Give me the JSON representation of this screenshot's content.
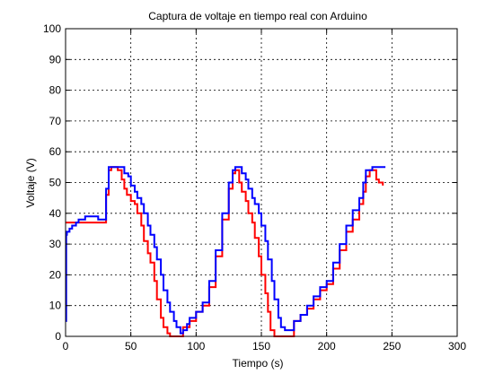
{
  "chart_data": {
    "type": "line",
    "title": "Captura de voltaje en tiempo real con Arduino",
    "xlabel": "Tiempo (s)",
    "ylabel": "Voltaje (V)",
    "xlim": [
      0,
      300
    ],
    "ylim": [
      0,
      100
    ],
    "xticks": [
      0,
      50,
      100,
      150,
      200,
      250,
      300
    ],
    "yticks": [
      0,
      10,
      20,
      30,
      40,
      50,
      60,
      70,
      80,
      90,
      100
    ],
    "grid": true,
    "legend": "none",
    "series": [
      {
        "color": "#ff0000",
        "x": [
          0,
          30,
          31,
          33,
          35,
          40,
          43,
          45,
          47,
          50,
          53,
          55,
          58,
          60,
          63,
          65,
          68,
          70,
          73,
          75,
          78,
          80,
          82,
          84,
          85,
          90,
          95,
          100,
          105,
          110,
          115,
          120,
          125,
          128,
          130,
          133,
          135,
          138,
          140,
          143,
          145,
          148,
          150,
          153,
          155,
          157,
          160,
          165,
          170,
          175,
          180,
          185,
          190,
          195,
          200,
          205,
          210,
          215,
          220,
          225,
          228,
          230,
          233,
          235,
          238,
          240,
          243
        ],
        "y": [
          37,
          37,
          46,
          54,
          55,
          54,
          51,
          48,
          46,
          44,
          43,
          40,
          36,
          31,
          27,
          24,
          18,
          12,
          6,
          3,
          1,
          0,
          0,
          0,
          0,
          3,
          5,
          8,
          10,
          16,
          26,
          38,
          48,
          53,
          54,
          50,
          47,
          44,
          40,
          37,
          32,
          26,
          20,
          14,
          8,
          2,
          0,
          0,
          0,
          5,
          7,
          9,
          12,
          15,
          17,
          22,
          28,
          34,
          38,
          43,
          47,
          52,
          54,
          54,
          51,
          50,
          49
        ]
      },
      {
        "color": "#0000ff",
        "x": [
          0,
          0.5,
          1,
          3,
          5,
          8,
          10,
          12,
          15,
          18,
          20,
          25,
          28,
          30,
          31,
          33,
          35,
          40,
          45,
          48,
          50,
          53,
          55,
          58,
          60,
          63,
          65,
          68,
          70,
          73,
          75,
          78,
          80,
          83,
          85,
          88,
          90,
          93,
          95,
          100,
          105,
          110,
          115,
          120,
          125,
          128,
          130,
          133,
          135,
          138,
          140,
          143,
          145,
          148,
          150,
          153,
          155,
          158,
          160,
          163,
          165,
          168,
          170,
          175,
          180,
          185,
          190,
          195,
          200,
          205,
          210,
          215,
          220,
          225,
          228,
          230,
          235,
          240,
          245
        ],
        "y": [
          5,
          33,
          34,
          35,
          36,
          37,
          38,
          38,
          39,
          39,
          39,
          38,
          38,
          38,
          48,
          55,
          55,
          55,
          53,
          52,
          49,
          47,
          45,
          43,
          40,
          36,
          33,
          29,
          25,
          20,
          15,
          11,
          8,
          5,
          3,
          1,
          2,
          4,
          6,
          8,
          11,
          18,
          28,
          40,
          50,
          54,
          55,
          55,
          53,
          51,
          48,
          45,
          43,
          40,
          36,
          31,
          25,
          18,
          12,
          6,
          3,
          2,
          2,
          5,
          7,
          10,
          13,
          16,
          18,
          24,
          30,
          36,
          41,
          45,
          50,
          54,
          55,
          55,
          55
        ]
      }
    ]
  }
}
